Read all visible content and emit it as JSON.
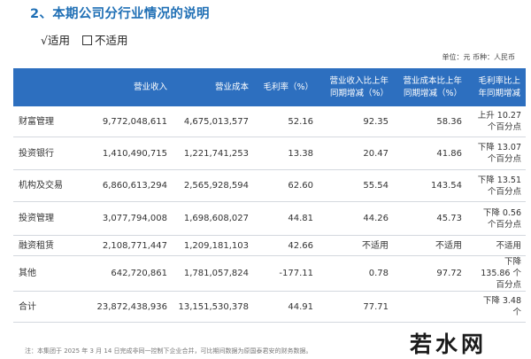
{
  "heading": "2、本期公司分行业情况的说明",
  "applicability": {
    "applicable": "√适用",
    "not_applicable": "不适用"
  },
  "unit_note": "单位：元  币种：人民币",
  "table": {
    "headers": [
      "",
      "营业收入",
      "营业成本",
      "毛利率（%）",
      "营业收入比上年同期增减（%）",
      "营业成本比上年同期增减（%）",
      "毛利率比上年同期增减"
    ],
    "rows": [
      {
        "name": "财富管理",
        "revenue": "9,772,048,611",
        "cost": "4,675,013,577",
        "margin": "52.16",
        "revenue_change": "92.35",
        "cost_change": "58.36",
        "margin_change": "上升 10.27 个百分点"
      },
      {
        "name": "投资银行",
        "revenue": "1,410,490,715",
        "cost": "1,221,741,253",
        "margin": "13.38",
        "revenue_change": "20.47",
        "cost_change": "41.86",
        "margin_change": "下降 13.07 个百分点"
      },
      {
        "name": "机构及交易",
        "revenue": "6,860,613,294",
        "cost": "2,565,928,594",
        "margin": "62.60",
        "revenue_change": "55.54",
        "cost_change": "143.54",
        "margin_change": "下降 13.51 个百分点"
      },
      {
        "name": "投资管理",
        "revenue": "3,077,794,008",
        "cost": "1,698,608,027",
        "margin": "44.81",
        "revenue_change": "44.26",
        "cost_change": "45.73",
        "margin_change": "下降 0.56 个百分点"
      },
      {
        "name": "融资租赁",
        "revenue": "2,108,771,447",
        "cost": "1,209,181,103",
        "margin": "42.66",
        "revenue_change": "不适用",
        "cost_change": "不适用",
        "margin_change": "不适用"
      },
      {
        "name": "其他",
        "revenue": "642,720,861",
        "cost": "1,781,057,824",
        "margin": "-177.11",
        "revenue_change": "0.78",
        "cost_change": "97.72",
        "margin_change": "下降 135.86 个百分点"
      },
      {
        "name": "合计",
        "revenue": "23,872,438,936",
        "cost": "13,151,530,378",
        "margin": "44.91",
        "revenue_change": "77.71",
        "cost_change": "",
        "margin_change": "下降 3.48 个"
      }
    ]
  },
  "footnote": "注：本集团于 2025 年 3 月 14 日完成非同一控制下企业合并，可比期间数据为原国泰君安的财务数据。",
  "watermark": "若水网"
}
